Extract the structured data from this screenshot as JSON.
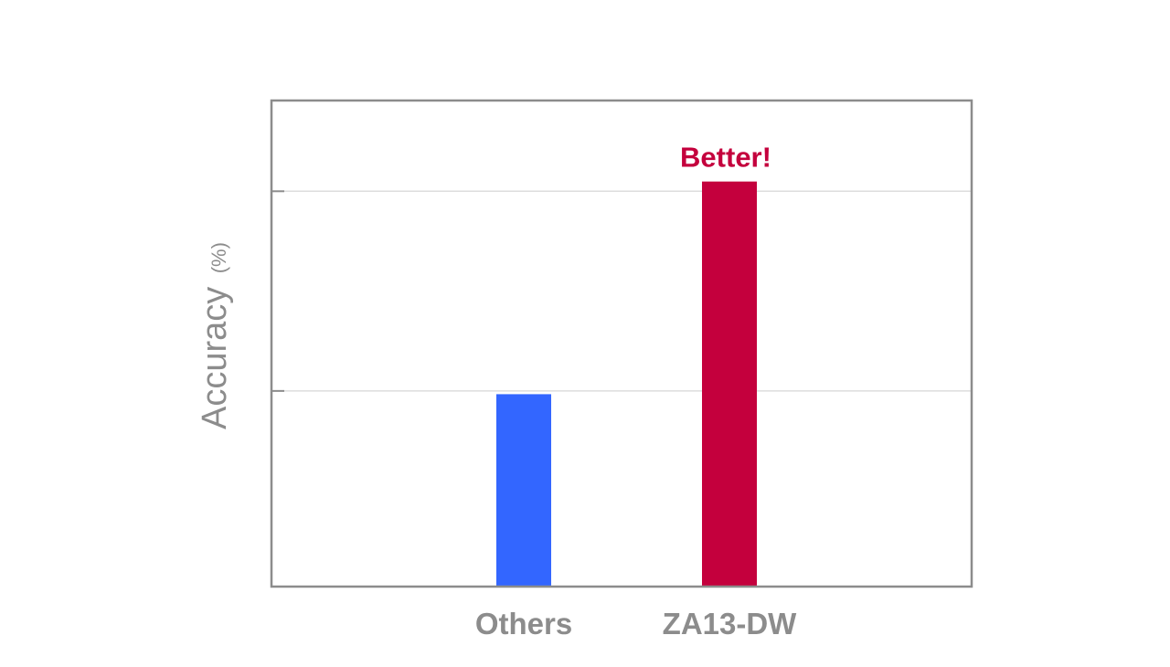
{
  "chart_data": {
    "type": "bar",
    "title": "",
    "xlabel": "",
    "ylabel": "Accuracy",
    "ylabel_unit": "(%)",
    "categories": [
      "Others",
      "ZA13-DW"
    ],
    "values": [
      47.5,
      100
    ],
    "ylim": [
      0,
      120
    ],
    "y_ticks": [
      48.3,
      97.6
    ],
    "y_tick_labels_shown": false,
    "grid": "horizontal",
    "legend": "none",
    "bar_colors": [
      "#3366ff",
      "#c4003d"
    ],
    "annotation": {
      "text": "Better!",
      "category": "ZA13-DW",
      "color": "#c4003d"
    },
    "colors": {
      "frame": "#8c8c8c",
      "gridline": "#dddddd",
      "axis_text": "#8c8c8c"
    }
  }
}
